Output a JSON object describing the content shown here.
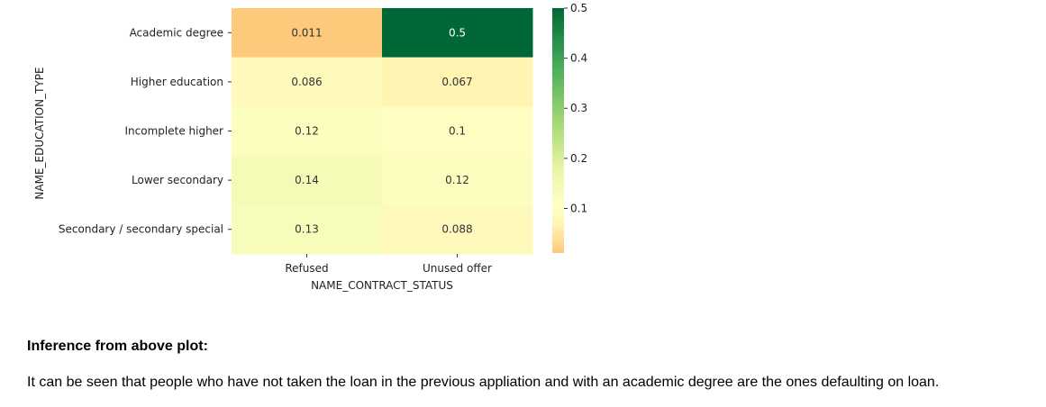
{
  "chart_data": {
    "type": "heatmap",
    "xlabel": "NAME_CONTRACT_STATUS",
    "ylabel": "NAME_EDUCATION_TYPE",
    "x_categories": [
      "Refused",
      "Unused offer"
    ],
    "y_categories": [
      "Academic degree",
      "Higher education",
      "Incomplete higher",
      "Lower secondary",
      "Secondary / secondary special"
    ],
    "values": [
      [
        0.011,
        0.5
      ],
      [
        0.086,
        0.067
      ],
      [
        0.12,
        0.1
      ],
      [
        0.14,
        0.12
      ],
      [
        0.13,
        0.088
      ]
    ],
    "cell_labels": [
      [
        "0.011",
        "0.5"
      ],
      [
        "0.086",
        "0.067"
      ],
      [
        "0.12",
        "0.1"
      ],
      [
        "0.14",
        "0.12"
      ],
      [
        "0.13",
        "0.088"
      ]
    ],
    "colormap": "RdYlGn",
    "colorbar": {
      "range": [
        0.011,
        0.5
      ],
      "ticks": [
        0.1,
        0.2,
        0.3,
        0.4,
        0.5
      ],
      "tick_labels": [
        "0.1",
        "0.2",
        "0.3",
        "0.4",
        "0.5"
      ]
    },
    "colors": {
      "low": "#fdc97a",
      "mid_low": "#fff6b5",
      "mid": "#ffffc5",
      "mid_high": "#eaf6a6",
      "mid_green": "#9fd571",
      "green": "#4bb05c",
      "high": "#006837"
    }
  },
  "note": {
    "heading": "Inference from above plot:",
    "body": "It can be seen that people who have not taken the loan in the previous appliation and with an academic degree are the ones defaulting on loan."
  }
}
